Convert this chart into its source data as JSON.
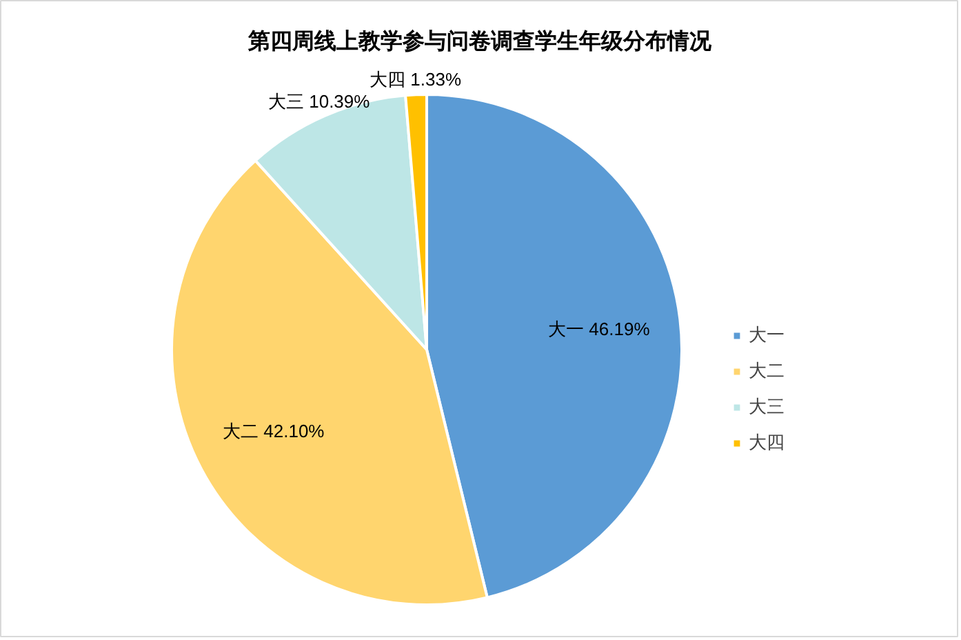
{
  "chart_data": {
    "type": "pie",
    "title": "第四周线上教学参与问卷调查学生年级分布情况",
    "categories": [
      "大一",
      "大二",
      "大三",
      "大四"
    ],
    "values": [
      46.19,
      42.1,
      10.39,
      1.33
    ],
    "colors": [
      "#5b9bd5",
      "#ffd56e",
      "#bde6e6",
      "#ffc000"
    ],
    "value_labels": [
      "46.19%",
      "42.10%",
      "10.39%",
      "1.33%"
    ],
    "legend": "right"
  }
}
